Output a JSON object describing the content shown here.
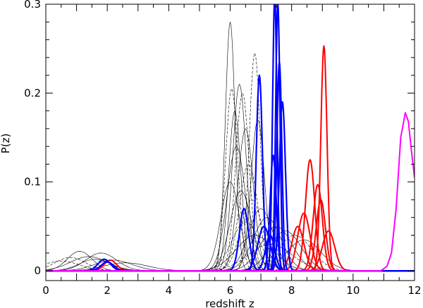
{
  "chart_data": {
    "type": "line",
    "title": "",
    "xlabel": "redshift z",
    "ylabel": "P(z)",
    "xlim": [
      0,
      12
    ],
    "ylim": [
      -0.011,
      0.3
    ],
    "grid": false,
    "legend": "none",
    "x_ticks": [
      0,
      2,
      4,
      6,
      8,
      10,
      12
    ],
    "y_ticks": [
      0,
      0.1,
      0.2,
      0.3
    ],
    "y_tick_labels": [
      "0",
      "0.1",
      "0.2",
      "0.3"
    ],
    "colors": {
      "black": "#000000",
      "blue": "#0000ff",
      "red": "#ff0000",
      "magenta": "#ff00ff"
    },
    "black_peaks": [
      {
        "peak": 6.0,
        "height": 0.28,
        "width": 0.16,
        "dashed": false
      },
      {
        "peak": 6.05,
        "height": 0.205,
        "width": 0.2,
        "dashed": true
      },
      {
        "peak": 6.15,
        "height": 0.18,
        "width": 0.2,
        "dashed": false
      },
      {
        "peak": 6.3,
        "height": 0.21,
        "width": 0.22,
        "dashed": false
      },
      {
        "peak": 6.4,
        "height": 0.2,
        "width": 0.22,
        "dashed": true
      },
      {
        "peak": 6.5,
        "height": 0.16,
        "width": 0.25,
        "dashed": false
      },
      {
        "peak": 6.8,
        "height": 0.245,
        "width": 0.18,
        "dashed": true
      },
      {
        "peak": 6.9,
        "height": 0.17,
        "width": 0.22,
        "dashed": false
      },
      {
        "peak": 6.2,
        "height": 0.14,
        "width": 0.3,
        "dashed": false
      },
      {
        "peak": 6.6,
        "height": 0.12,
        "width": 0.3,
        "dashed": true
      },
      {
        "peak": 6.0,
        "height": 0.1,
        "width": 0.3,
        "dashed": false
      },
      {
        "peak": 6.35,
        "height": 0.09,
        "width": 0.35,
        "dashed": false
      },
      {
        "peak": 6.7,
        "height": 0.08,
        "width": 0.35,
        "dashed": true
      },
      {
        "peak": 7.0,
        "height": 0.07,
        "width": 0.4,
        "dashed": false
      },
      {
        "peak": 7.2,
        "height": 0.06,
        "width": 0.45,
        "dashed": false
      },
      {
        "peak": 6.5,
        "height": 0.055,
        "width": 0.45,
        "dashed": true
      },
      {
        "peak": 7.5,
        "height": 0.05,
        "width": 0.5,
        "dashed": false
      },
      {
        "peak": 7.8,
        "height": 0.045,
        "width": 0.5,
        "dashed": false
      },
      {
        "peak": 8.1,
        "height": 0.04,
        "width": 0.55,
        "dashed": true
      },
      {
        "peak": 8.4,
        "height": 0.035,
        "width": 0.55,
        "dashed": false
      },
      {
        "peak": 6.8,
        "height": 0.04,
        "width": 0.6,
        "dashed": false
      },
      {
        "peak": 7.3,
        "height": 0.03,
        "width": 0.7,
        "dashed": true
      },
      {
        "peak": 1.1,
        "height": 0.022,
        "width": 0.4,
        "dashed": false
      },
      {
        "peak": 1.8,
        "height": 0.02,
        "width": 0.5,
        "dashed": false
      },
      {
        "peak": 0.8,
        "height": 0.015,
        "width": 0.5,
        "dashed": true
      },
      {
        "peak": 1.4,
        "height": 0.016,
        "width": 0.6,
        "dashed": false
      },
      {
        "peak": 2.2,
        "height": 0.012,
        "width": 0.6,
        "dashed": false
      },
      {
        "peak": 0.5,
        "height": 0.011,
        "width": 0.6,
        "dashed": true
      },
      {
        "peak": 1.6,
        "height": 0.013,
        "width": 0.5,
        "dashed": false
      },
      {
        "peak": 2.6,
        "height": 0.009,
        "width": 0.7,
        "dashed": false
      }
    ],
    "blue_peaks": [
      {
        "peak": 7.45,
        "height": 0.31,
        "width": 0.07
      },
      {
        "peak": 7.55,
        "height": 0.3,
        "width": 0.07
      },
      {
        "peak": 6.95,
        "height": 0.22,
        "width": 0.1
      },
      {
        "peak": 7.6,
        "height": 0.235,
        "width": 0.08
      },
      {
        "peak": 7.7,
        "height": 0.19,
        "width": 0.1
      },
      {
        "peak": 7.4,
        "height": 0.13,
        "width": 0.1
      },
      {
        "peak": 6.45,
        "height": 0.07,
        "width": 0.15
      },
      {
        "peak": 7.1,
        "height": 0.05,
        "width": 0.2
      },
      {
        "peak": 7.3,
        "height": 0.04,
        "width": 0.15
      },
      {
        "peak": 1.9,
        "height": 0.013,
        "width": 0.2
      },
      {
        "peak": 2.0,
        "height": 0.01,
        "width": 0.2
      }
    ],
    "red_peaks": [
      {
        "peak": 9.05,
        "height": 0.253,
        "width": 0.1
      },
      {
        "peak": 8.6,
        "height": 0.125,
        "width": 0.15
      },
      {
        "peak": 8.85,
        "height": 0.097,
        "width": 0.15
      },
      {
        "peak": 8.95,
        "height": 0.08,
        "width": 0.15
      },
      {
        "peak": 8.4,
        "height": 0.065,
        "width": 0.2
      },
      {
        "peak": 8.2,
        "height": 0.05,
        "width": 0.2
      },
      {
        "peak": 9.2,
        "height": 0.045,
        "width": 0.2
      },
      {
        "peak": 2.1,
        "height": 0.012,
        "width": 0.2
      }
    ],
    "magenta_curve": [
      {
        "x": 10.9,
        "y": 0.0
      },
      {
        "x": 11.1,
        "y": 0.005
      },
      {
        "x": 11.25,
        "y": 0.02
      },
      {
        "x": 11.4,
        "y": 0.07
      },
      {
        "x": 11.55,
        "y": 0.15
      },
      {
        "x": 11.7,
        "y": 0.178
      },
      {
        "x": 11.8,
        "y": 0.168
      },
      {
        "x": 11.9,
        "y": 0.135
      },
      {
        "x": 12.0,
        "y": 0.105
      }
    ]
  }
}
